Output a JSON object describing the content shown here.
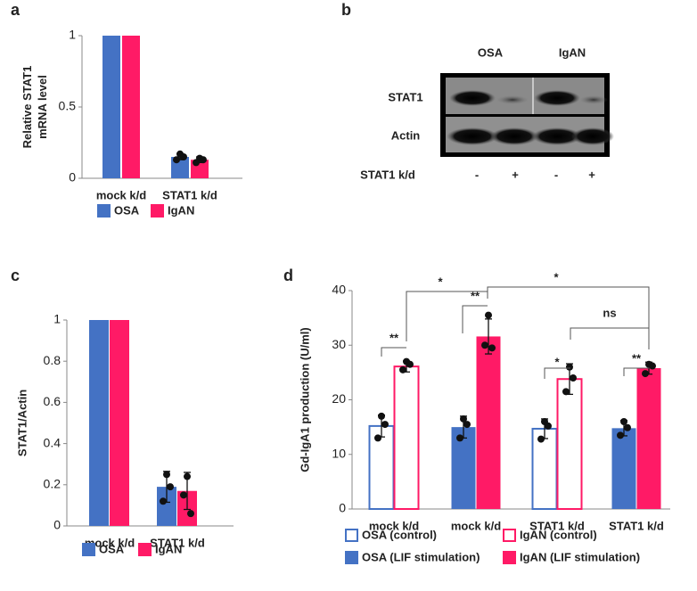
{
  "chart_data": [
    {
      "type": "bar",
      "panel": "a",
      "ylabel": [
        "Relative STAT1",
        "mRNA level"
      ],
      "categories": [
        "mock k/d",
        "STAT1 k/d"
      ],
      "ylim": [
        0,
        1
      ],
      "yticks": [
        0,
        0.5,
        1
      ],
      "series": [
        {
          "name": "OSA",
          "color": "#4472c4",
          "filled": true,
          "values": [
            1,
            0.15
          ],
          "errors": [
            null,
            0.02
          ],
          "points": [
            null,
            [
              0.17,
              0.13,
              0.15
            ]
          ]
        },
        {
          "name": "IgAN",
          "color": "#ff1a66",
          "filled": true,
          "values": [
            1,
            0.13
          ],
          "errors": [
            null,
            0.02
          ],
          "points": [
            null,
            [
              0.14,
              0.11,
              0.13
            ]
          ]
        }
      ]
    },
    {
      "type": "bar",
      "panel": "c",
      "ylabel": [
        "STAT1/Actin"
      ],
      "categories": [
        "mock k/d",
        "STAT1 k/d"
      ],
      "ylim": [
        0,
        1
      ],
      "yticks": [
        0,
        0.2,
        0.4,
        0.6,
        0.8,
        1
      ],
      "series": [
        {
          "name": "OSA",
          "color": "#4472c4",
          "filled": true,
          "values": [
            1,
            0.19
          ],
          "errors": [
            null,
            0.075
          ],
          "points": [
            null,
            [
              0.25,
              0.12,
              0.19
            ]
          ]
        },
        {
          "name": "IgAN",
          "color": "#ff1a66",
          "filled": true,
          "values": [
            1,
            0.17
          ],
          "errors": [
            null,
            0.09
          ],
          "points": [
            null,
            [
              0.24,
              0.15,
              0.06
            ]
          ]
        }
      ]
    },
    {
      "type": "bar",
      "panel": "d",
      "ylabel": [
        "Gd-IgA1 production (U/ml)"
      ],
      "categories": [
        "mock k/d",
        "mock k/d",
        "STAT1 k/d",
        "STAT1 k/d"
      ],
      "ylim": [
        0,
        40
      ],
      "yticks": [
        0,
        10,
        20,
        30,
        40
      ],
      "series": [
        {
          "name": "OSA (control)",
          "color": "#4472c4",
          "filled": false,
          "values": [
            15.2,
            null,
            14.7,
            null
          ],
          "errors": [
            2,
            null,
            1.8,
            null
          ],
          "points": [
            [
              17,
              13,
              15.5
            ],
            null,
            [
              16,
              12.8,
              15.2
            ],
            null
          ]
        },
        {
          "name": "IgAN (control)",
          "color": "#ff1a66",
          "filled": false,
          "values": [
            26.1,
            null,
            23.8,
            null
          ],
          "errors": [
            1,
            null,
            2.8,
            null
          ],
          "points": [
            [
              27,
              25.5,
              26.5
            ],
            null,
            [
              26,
              21.5,
              24
            ],
            null
          ]
        },
        {
          "name": "OSA (LIF stimulation)",
          "color": "#4472c4",
          "filled": true,
          "values": [
            null,
            15,
            null,
            14.8
          ],
          "errors": [
            null,
            2,
            null,
            1.4
          ],
          "points": [
            null,
            [
              16.5,
              13,
              15.5
            ],
            null,
            [
              16,
              13.5,
              14.9
            ]
          ]
        },
        {
          "name": "IgAN (LIF stimulation)",
          "color": "#ff1a66",
          "filled": true,
          "values": [
            null,
            31.6,
            null,
            25.8
          ],
          "errors": [
            null,
            3.2,
            null,
            1.1
          ],
          "points": [
            null,
            [
              35.5,
              30,
              29.5
            ],
            null,
            [
              26.5,
              24.8,
              26.2
            ]
          ]
        }
      ],
      "annotations": [
        "**",
        "**",
        "*",
        "**",
        "*",
        "*",
        "ns"
      ]
    }
  ],
  "blot": {
    "panel": "b",
    "columns": [
      "OSA",
      "IgAN"
    ],
    "rows": [
      "STAT1",
      "Actin"
    ],
    "treatment": "STAT1 k/d",
    "lanes": [
      "-",
      "+",
      "-",
      "+"
    ]
  }
}
